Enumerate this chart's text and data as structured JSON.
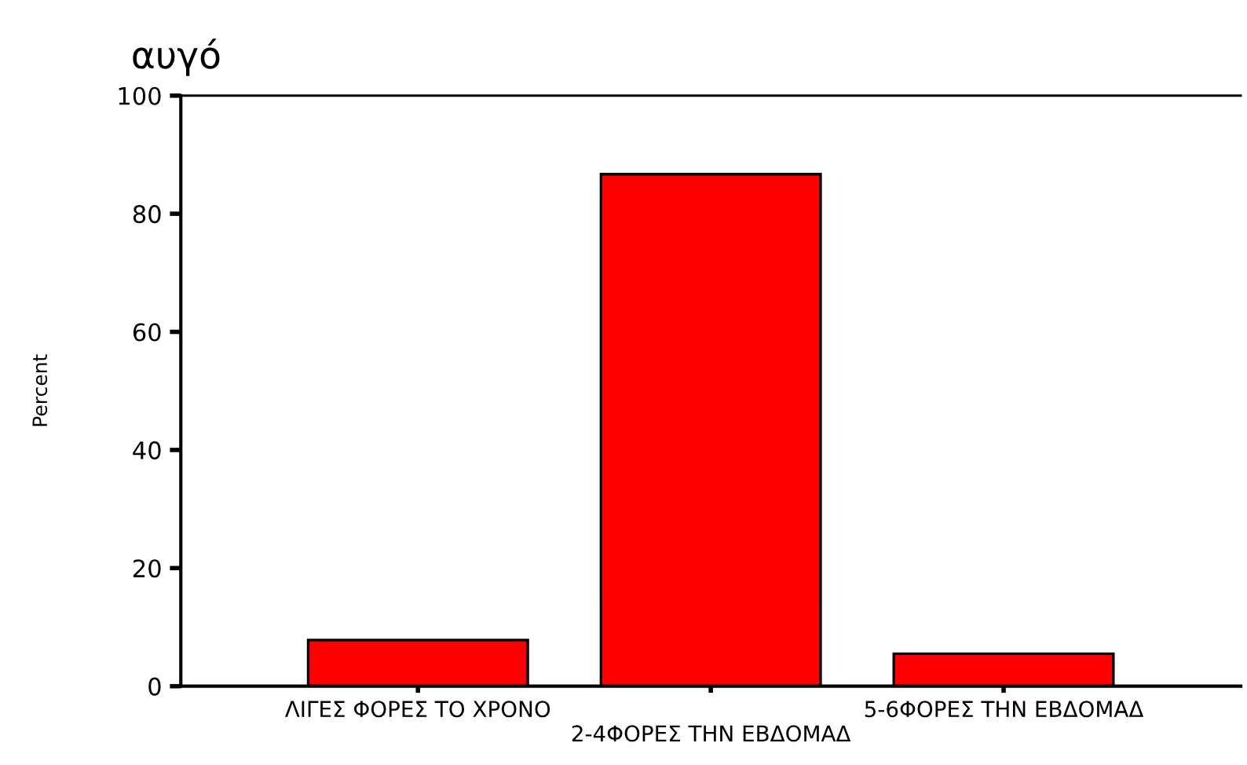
{
  "chart_data": {
    "type": "bar",
    "title": "αυγό",
    "ylabel": "Percent",
    "categories": [
      "ΛΙΓΕΣ ΦΟΡΕΣ ΤΟ ΧΡΟΝΟ",
      "2-4ΦΟΡΕΣ ΤΗΝ ΕΒΔΟΜΑΔ",
      "5-6ΦΟΡΕΣ ΤΗΝ ΕΒΔΟΜΑΔ"
    ],
    "values": [
      7.8,
      86.7,
      5.5
    ],
    "color": "#ff0000",
    "ylim": [
      0,
      100
    ],
    "yticks": [
      0,
      20,
      40,
      60,
      80,
      100
    ],
    "grid": false,
    "legend": false
  }
}
